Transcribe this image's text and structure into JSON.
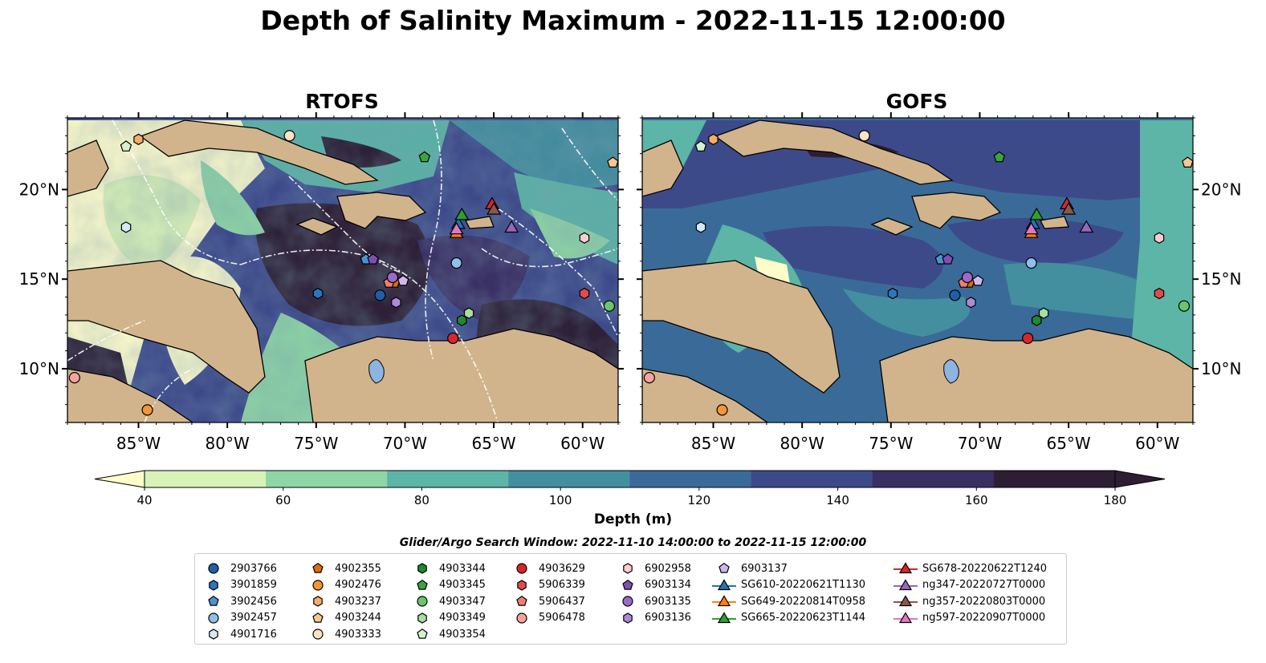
{
  "title": "Depth of Salinity Maximum - 2022-11-15 12:00:00",
  "panels": [
    {
      "title": "RTOFS"
    },
    {
      "title": "GOFS"
    }
  ],
  "map_axes": {
    "lon_range": [
      -89,
      -58
    ],
    "lat_range": [
      7,
      24
    ],
    "lon_ticks": [
      {
        "value": -85,
        "label": "85°W"
      },
      {
        "value": -80,
        "label": "80°W"
      },
      {
        "value": -75,
        "label": "75°W"
      },
      {
        "value": -70,
        "label": "70°W"
      },
      {
        "value": -65,
        "label": "65°W"
      },
      {
        "value": -60,
        "label": "60°W"
      }
    ],
    "lat_ticks": [
      {
        "value": 10,
        "label": "10°N"
      },
      {
        "value": 15,
        "label": "15°N"
      },
      {
        "value": 20,
        "label": "20°N"
      }
    ]
  },
  "colorbar": {
    "label": "Depth (m)",
    "min": 40,
    "max": 180,
    "extend": "both",
    "ticks": [
      "40",
      "60",
      "80",
      "100",
      "120",
      "140",
      "160",
      "180"
    ],
    "colors": [
      "#d8f2b8",
      "#8fd6a6",
      "#5cb5a6",
      "#438f9f",
      "#3a6b98",
      "#3d4a8a",
      "#3a2f63",
      "#2d1e33"
    ],
    "extend_low_color": "#fdfdcc",
    "extend_high_color": "#2d1e33"
  },
  "land_color": "#d2b48c",
  "lake_color": "#8eb5e0",
  "search_window_note": "Glider/Argo Search Window: 2022-11-10 14:00:00 to 2022-11-15 12:00:00",
  "legend": {
    "columns": [
      [
        {
          "label": "2903766",
          "marker": "circle",
          "color": "#1f5fa6"
        },
        {
          "label": "3901859",
          "marker": "hexagon",
          "color": "#2a77c0"
        },
        {
          "label": "3902456",
          "marker": "pentagon",
          "color": "#4a93d0"
        },
        {
          "label": "3902457",
          "marker": "circle",
          "color": "#8ec0e8"
        },
        {
          "label": "4901716",
          "marker": "hexagon",
          "color": "#d4e8f8"
        }
      ],
      [
        {
          "label": "4902355",
          "marker": "pentagon",
          "color": "#e06a0e"
        },
        {
          "label": "4902476",
          "marker": "circle",
          "color": "#f59535"
        },
        {
          "label": "4903237",
          "marker": "hexagon",
          "color": "#f7ad6a"
        },
        {
          "label": "4903244",
          "marker": "pentagon",
          "color": "#f9c690"
        },
        {
          "label": "4903333",
          "marker": "circle",
          "color": "#fde2c4"
        }
      ],
      [
        {
          "label": "4903344",
          "marker": "hexagon",
          "color": "#1f8a2e"
        },
        {
          "label": "4903345",
          "marker": "pentagon",
          "color": "#3aa43e"
        },
        {
          "label": "4903347",
          "marker": "circle",
          "color": "#6cc56a"
        },
        {
          "label": "4903349",
          "marker": "hexagon",
          "color": "#a6df9e"
        },
        {
          "label": "4903354",
          "marker": "pentagon",
          "color": "#d4f2cc"
        }
      ],
      [
        {
          "label": "4903629",
          "marker": "circle",
          "color": "#d62728"
        },
        {
          "label": "5906339",
          "marker": "hexagon",
          "color": "#e34a4a"
        },
        {
          "label": "5906437",
          "marker": "pentagon",
          "color": "#f07e70"
        },
        {
          "label": "5906478",
          "marker": "circle",
          "color": "#f7a3a0"
        }
      ],
      [
        {
          "label": "6902958",
          "marker": "hexagon",
          "color": "#fbcdd0"
        },
        {
          "label": "6903134",
          "marker": "pentagon",
          "color": "#7f4fb5"
        },
        {
          "label": "6903135",
          "marker": "circle",
          "color": "#9b6ac9"
        },
        {
          "label": "6903136",
          "marker": "hexagon",
          "color": "#b088d8"
        }
      ],
      [
        {
          "label": "6903137",
          "marker": "pentagon",
          "color": "#d0b8ee"
        },
        {
          "label": "SG610-20220621T1130",
          "marker": "triangle-line",
          "color": "#1f77b4"
        },
        {
          "label": "SG649-20220814T0958",
          "marker": "triangle-line",
          "color": "#ff7f0e"
        },
        {
          "label": "SG665-20220623T1144",
          "marker": "triangle-line",
          "color": "#2ca02c"
        }
      ],
      [
        {
          "label": "SG678-20220622T1240",
          "marker": "triangle-line",
          "color": "#d62728"
        },
        {
          "label": "ng347-20220727T0000",
          "marker": "triangle-line",
          "color": "#9467bd"
        },
        {
          "label": "ng357-20220803T0000",
          "marker": "triangle-line",
          "color": "#8c564b"
        },
        {
          "label": "ng597-20220907T0000",
          "marker": "triangle-line",
          "color": "#e377c2"
        }
      ]
    ]
  },
  "floats": [
    {
      "id": "2903766",
      "marker": "circle",
      "color": "#1f5fa6",
      "lon": -71.4,
      "lat": 14.1
    },
    {
      "id": "3901859",
      "marker": "hexagon",
      "color": "#2a77c0",
      "lon": -74.9,
      "lat": 14.2
    },
    {
      "id": "3902456",
      "marker": "pentagon",
      "color": "#4a93d0",
      "lon": -72.2,
      "lat": 16.1
    },
    {
      "id": "3902457",
      "marker": "circle",
      "color": "#8ec0e8",
      "lon": -67.1,
      "lat": 15.9
    },
    {
      "id": "4901716",
      "marker": "hexagon",
      "color": "#d4e8f8",
      "lon": -85.7,
      "lat": 17.9
    },
    {
      "id": "4902355",
      "marker": "pentagon",
      "color": "#e06a0e",
      "lon": -70.6,
      "lat": 14.8
    },
    {
      "id": "4902476",
      "marker": "circle",
      "color": "#f59535",
      "lon": -84.5,
      "lat": 7.7
    },
    {
      "id": "4903237",
      "marker": "hexagon",
      "color": "#f7ad6a",
      "lon": -85.0,
      "lat": 22.8
    },
    {
      "id": "4903244",
      "marker": "pentagon",
      "color": "#f9c690",
      "lon": -58.3,
      "lat": 21.5
    },
    {
      "id": "4903333",
      "marker": "circle",
      "color": "#fde2c4",
      "lon": -76.5,
      "lat": 23.0
    },
    {
      "id": "4903344",
      "marker": "hexagon",
      "color": "#1f8a2e",
      "lon": -66.8,
      "lat": 12.7
    },
    {
      "id": "4903345",
      "marker": "pentagon",
      "color": "#3aa43e",
      "lon": -68.9,
      "lat": 21.8
    },
    {
      "id": "4903347",
      "marker": "circle",
      "color": "#6cc56a",
      "lon": -58.5,
      "lat": 13.5
    },
    {
      "id": "4903349",
      "marker": "hexagon",
      "color": "#a6df9e",
      "lon": -66.4,
      "lat": 13.1
    },
    {
      "id": "4903354",
      "marker": "pentagon",
      "color": "#d4f2cc",
      "lon": -85.7,
      "lat": 22.4
    },
    {
      "id": "4903629",
      "marker": "circle",
      "color": "#d62728",
      "lon": -67.3,
      "lat": 11.7
    },
    {
      "id": "5906339",
      "marker": "hexagon",
      "color": "#e34a4a",
      "lon": -59.9,
      "lat": 14.2
    },
    {
      "id": "5906437",
      "marker": "pentagon",
      "color": "#f07e70",
      "lon": -70.9,
      "lat": 14.8
    },
    {
      "id": "5906478",
      "marker": "circle",
      "color": "#f7a3a0",
      "lon": -88.6,
      "lat": 9.5
    },
    {
      "id": "6902958",
      "marker": "hexagon",
      "color": "#fbcdd0",
      "lon": -59.9,
      "lat": 17.3
    },
    {
      "id": "6903134",
      "marker": "pentagon",
      "color": "#7f4fb5",
      "lon": -71.8,
      "lat": 16.1
    },
    {
      "id": "6903135",
      "marker": "circle",
      "color": "#9b6ac9",
      "lon": -70.7,
      "lat": 15.1
    },
    {
      "id": "6903136",
      "marker": "hexagon",
      "color": "#b088d8",
      "lon": -70.5,
      "lat": 13.7
    },
    {
      "id": "6903137",
      "marker": "pentagon",
      "color": "#d0b8ee",
      "lon": -70.1,
      "lat": 14.9
    }
  ],
  "gliders": [
    {
      "id": "SG610-20220621T1130",
      "color": "#1f77b4",
      "lon": -67.0,
      "lat": 18.1
    },
    {
      "id": "SG649-20220814T0958",
      "color": "#ff7f0e",
      "lon": -67.1,
      "lat": 17.6
    },
    {
      "id": "SG665-20220623T1144",
      "color": "#2ca02c",
      "lon": -66.8,
      "lat": 18.6
    },
    {
      "id": "SG678-20220622T1240",
      "color": "#d62728",
      "lon": -65.1,
      "lat": 19.2
    },
    {
      "id": "ng347-20220727T0000",
      "color": "#9467bd",
      "lon": -64.0,
      "lat": 17.9
    },
    {
      "id": "ng357-20220803T0000",
      "color": "#8c564b",
      "lon": -65.0,
      "lat": 18.9
    },
    {
      "id": "ng597-20220907T0000",
      "color": "#e377c2",
      "lon": -67.1,
      "lat": 17.8
    }
  ]
}
